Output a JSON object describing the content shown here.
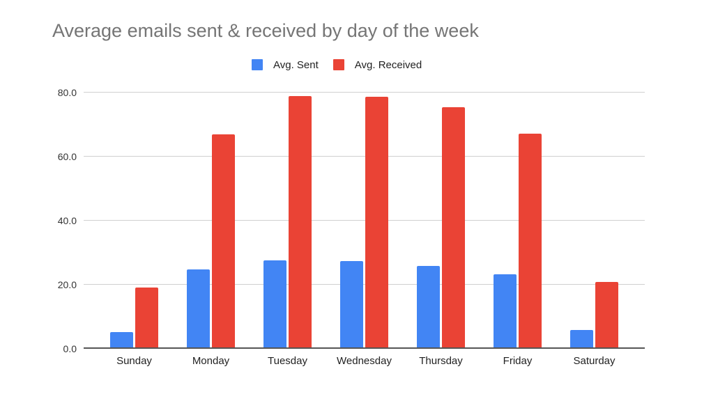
{
  "chart_data": {
    "type": "bar",
    "title": "Average emails sent & received by day of the week",
    "xlabel": "",
    "ylabel": "",
    "categories": [
      "Sunday",
      "Monday",
      "Tuesday",
      "Wednesday",
      "Thursday",
      "Friday",
      "Saturday"
    ],
    "series": [
      {
        "name": "Avg. Sent",
        "color": "#4285F4",
        "values": [
          5.1,
          24.6,
          27.5,
          27.2,
          25.6,
          23.0,
          5.6
        ]
      },
      {
        "name": "Avg. Received",
        "color": "#EA4335",
        "values": [
          19.0,
          66.8,
          78.8,
          78.5,
          75.2,
          67.0,
          20.7
        ]
      }
    ],
    "ylim": [
      0,
      80
    ],
    "yticks": [
      "0.0",
      "20.0",
      "40.0",
      "60.0",
      "80.0"
    ],
    "grid": true,
    "legend_position": "top"
  },
  "title": "Average emails sent & received by day of the week",
  "legend": [
    {
      "label": "Avg. Sent",
      "color": "#4285F4"
    },
    {
      "label": "Avg. Received",
      "color": "#EA4335"
    }
  ]
}
